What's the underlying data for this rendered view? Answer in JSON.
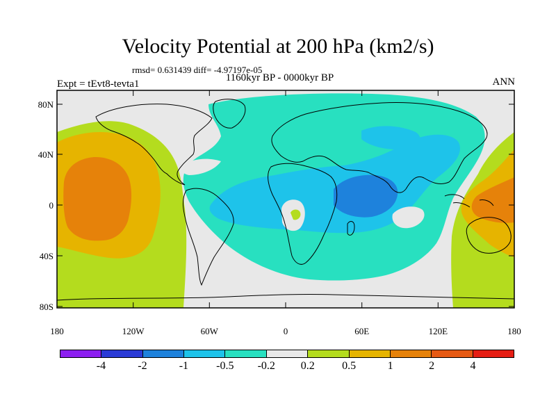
{
  "title": "Velocity Potential at 200 hPa (km2/s)",
  "stats": "rmsd= 0.631439 diff= -4.97197e-05",
  "experiment": "Expt = tEvt8-tevta1",
  "period": "1160kyr BP - 0000kyr BP",
  "season": "ANN",
  "lat_labels": [
    "80N",
    "40N",
    "0",
    "40S",
    "80S"
  ],
  "lon_labels": [
    "180",
    "120W",
    "60W",
    "0",
    "60E",
    "120E",
    "180"
  ],
  "colorbar": {
    "labels": [
      "-4",
      "-2",
      "-1",
      "-0.5",
      "-0.2",
      "0.2",
      "0.5",
      "1",
      "2",
      "4"
    ],
    "colors": [
      "#8c1ef0",
      "#2b3bd6",
      "#1e82dc",
      "#1ec3ea",
      "#28e0c0",
      "#e8e8e8",
      "#b4dc1e",
      "#e6b400",
      "#e6820a",
      "#e65a14",
      "#e61e14"
    ]
  },
  "contour_colors": {
    "neutral": "#e8e8e8",
    "neg_02": "#28e0c0",
    "neg_05": "#1ec3ea",
    "neg_1": "#1e82dc",
    "pos_02": "#b4dc1e",
    "pos_05": "#e6b400",
    "pos_1": "#e6820a"
  }
}
